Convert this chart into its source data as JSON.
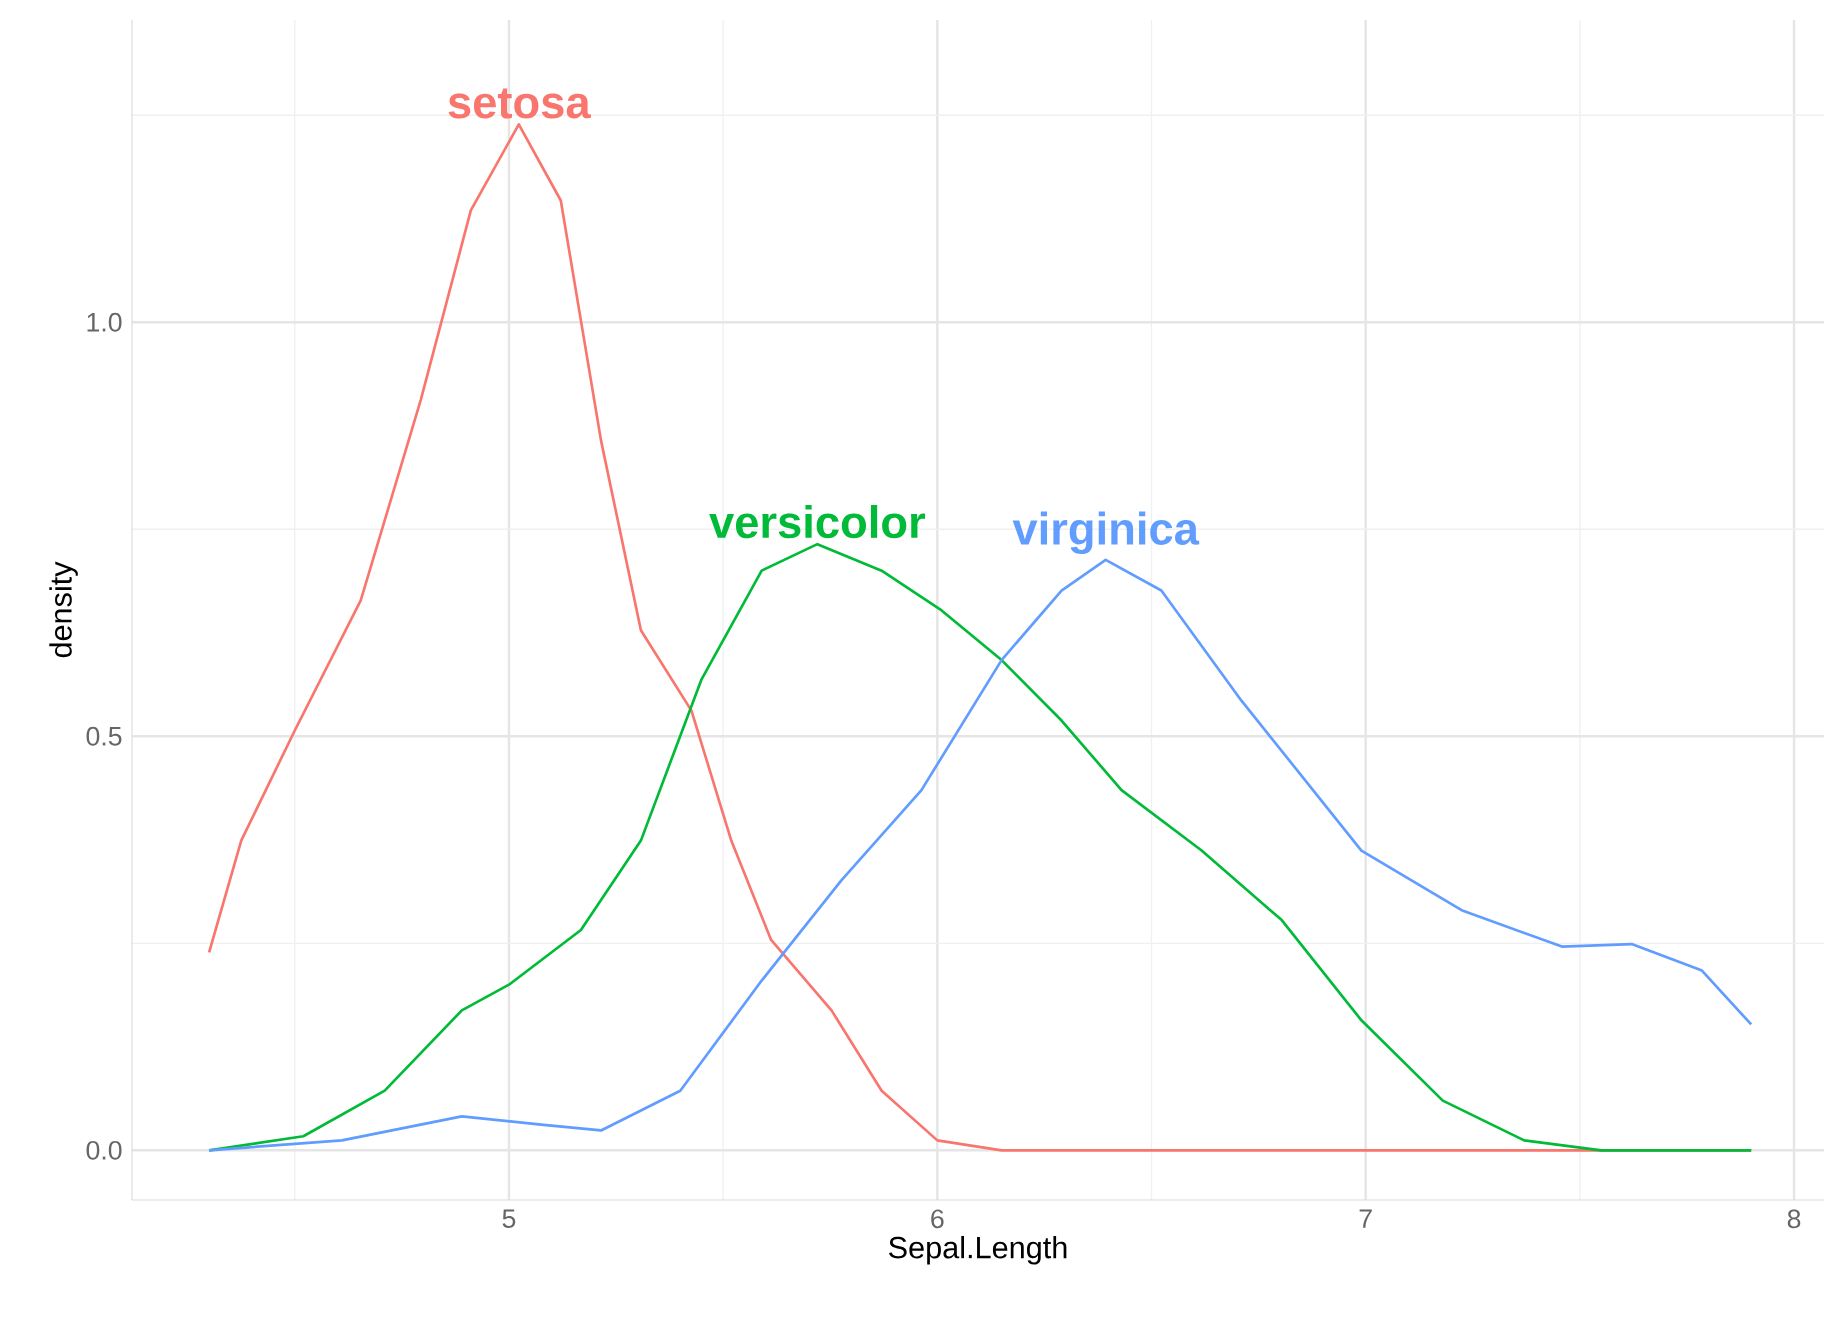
{
  "chart_data": {
    "type": "line",
    "xlabel": "Sepal.Length",
    "ylabel": "density",
    "xlim": [
      4.12,
      8.07
    ],
    "ylim": [
      -0.06,
      1.365
    ],
    "xticks": [
      {
        "value": 4.5,
        "label": null
      },
      5,
      {
        "value": 5.5,
        "label": null
      },
      6,
      {
        "value": 6.5,
        "label": null
      },
      7,
      {
        "value": 7.5,
        "label": null
      },
      8
    ],
    "yticks": [
      {
        "value": 0,
        "label": "0.0"
      },
      {
        "value": 0.25,
        "label": null
      },
      {
        "value": 0.5,
        "label": "0.5"
      },
      {
        "value": 0.75,
        "label": null
      },
      {
        "value": 1,
        "label": "1.0"
      },
      {
        "value": 1.25,
        "label": null
      }
    ],
    "grid": true,
    "series": [
      {
        "name": "setosa",
        "color": "#f8766d",
        "x": [
          4.3,
          4.375,
          4.5,
          4.654,
          4.794,
          4.911,
          5.023,
          5.121,
          5.215,
          5.308,
          5.426,
          5.519,
          5.612,
          5.753,
          5.87,
          6.0,
          6.15,
          6.62,
          7.5,
          7.9
        ],
        "values": [
          0.239,
          0.374,
          0.507,
          0.664,
          0.906,
          1.135,
          1.239,
          1.147,
          0.857,
          0.628,
          0.531,
          0.374,
          0.254,
          0.169,
          0.072,
          0.012,
          0.0,
          0.0,
          0.0,
          0.0
        ]
      },
      {
        "name": "versicolor",
        "color": "#00ba38",
        "x": [
          4.3,
          4.52,
          4.71,
          4.89,
          5.0,
          5.168,
          5.308,
          5.449,
          5.59,
          5.72,
          5.87,
          6.01,
          6.15,
          6.29,
          6.43,
          6.617,
          6.804,
          6.99,
          7.18,
          7.37,
          7.55,
          7.9
        ],
        "values": [
          0.0,
          0.017,
          0.072,
          0.169,
          0.2,
          0.266,
          0.374,
          0.568,
          0.7,
          0.732,
          0.7,
          0.652,
          0.592,
          0.519,
          0.435,
          0.362,
          0.278,
          0.157,
          0.06,
          0.012,
          0.0,
          0.0
        ]
      },
      {
        "name": "virginica",
        "color": "#619cff",
        "x": [
          4.3,
          4.61,
          4.89,
          5.075,
          5.215,
          5.4,
          5.59,
          5.776,
          5.963,
          6.15,
          6.29,
          6.393,
          6.523,
          6.71,
          6.99,
          7.224,
          7.458,
          7.621,
          7.785,
          7.9
        ],
        "values": [
          0.0,
          0.012,
          0.041,
          0.031,
          0.024,
          0.072,
          0.205,
          0.326,
          0.435,
          0.592,
          0.676,
          0.713,
          0.676,
          0.543,
          0.362,
          0.29,
          0.246,
          0.249,
          0.217,
          0.152
        ]
      }
    ]
  }
}
